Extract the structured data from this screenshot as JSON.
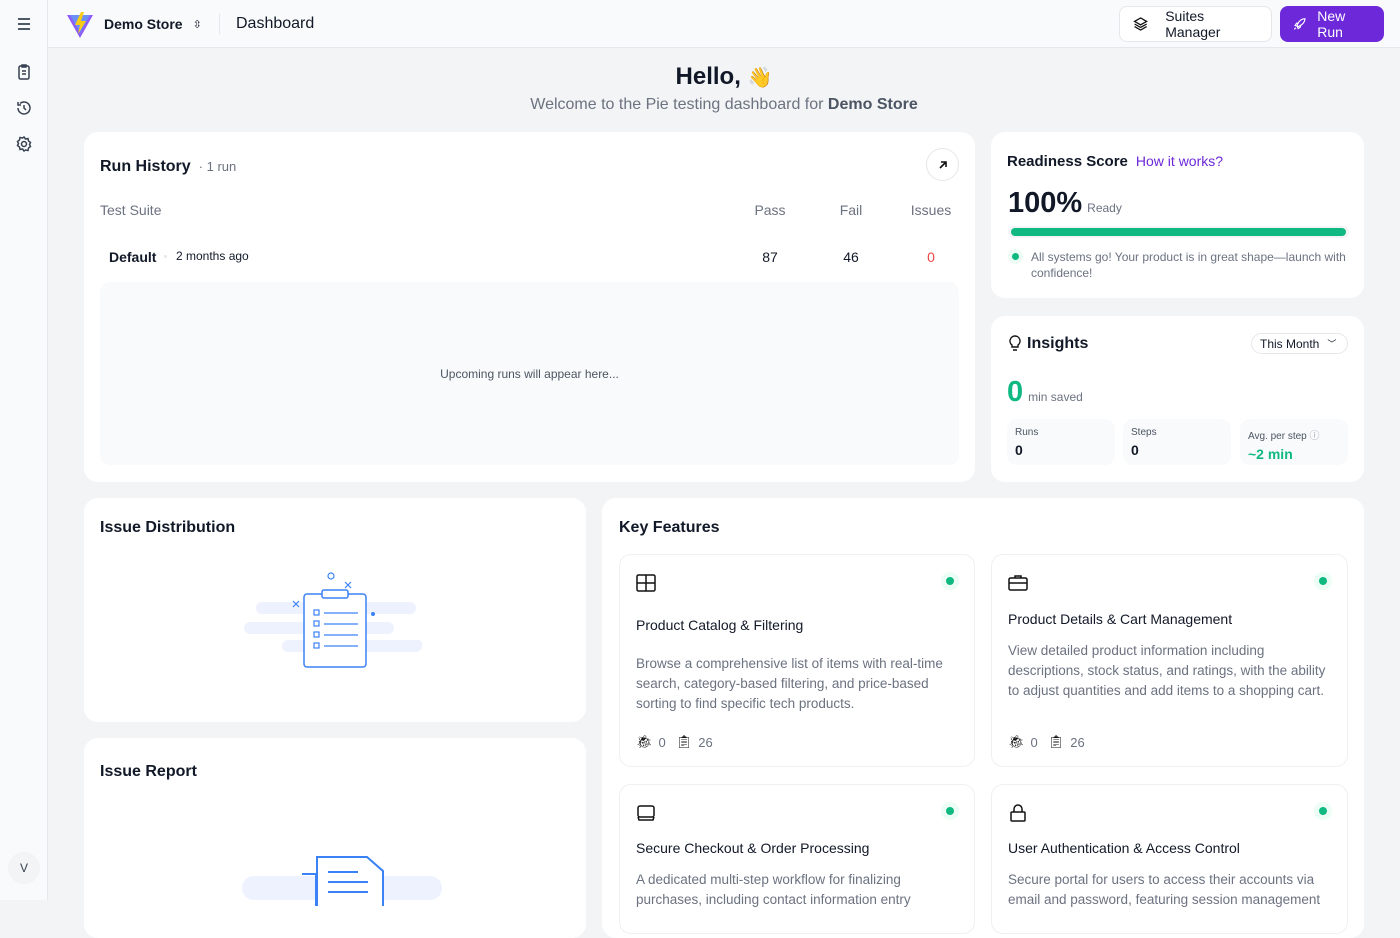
{
  "sidebar": {
    "avatar_letter": "V"
  },
  "header": {
    "store": "Demo Store",
    "page": "Dashboard",
    "suites_manager": "Suites Manager",
    "new_run": "New Run"
  },
  "greeting": {
    "title": "Hello,",
    "subtitle_prefix": "Welcome to the Pie testing dashboard for ",
    "store": "Demo Store"
  },
  "run_history": {
    "title": "Run History",
    "count": "· 1 run",
    "columns": [
      "Test Suite",
      "Pass",
      "Fail",
      "Issues"
    ],
    "rows": [
      {
        "suite": "Default",
        "time": "2 months ago",
        "pass": "87",
        "fail": "46",
        "issues": "0"
      }
    ],
    "empty": "Upcoming runs will appear here..."
  },
  "readiness": {
    "title": "Readiness Score",
    "link": "How it works?",
    "score": "100%",
    "score_value": 100,
    "status": "Ready",
    "message": "All systems go! Your product is in great shape—launch with confidence!",
    "color": "#10b981"
  },
  "insights": {
    "title": "Insights",
    "period": "This Month",
    "minutes": "0",
    "minutes_label": "min saved",
    "stats": [
      {
        "label": "Runs",
        "value": "0"
      },
      {
        "label": "Steps",
        "value": "0"
      },
      {
        "label": "Avg. per step",
        "value": "~2 min"
      }
    ]
  },
  "issue_distribution": {
    "title": "Issue Distribution"
  },
  "issue_report": {
    "title": "Issue Report"
  },
  "key_features": {
    "title": "Key Features",
    "items": [
      {
        "icon": "grid-icon",
        "title": "Product Catalog & Filtering",
        "desc": "Browse a comprehensive list of items with real-time search, category-based filtering, and price-based sorting to find specific tech products.",
        "bugs": "0",
        "tests": "26"
      },
      {
        "icon": "briefcase-icon",
        "title": "Product Details & Cart Management",
        "desc": "View detailed product information including descriptions, stock status, and ratings, with the ability to adjust quantities and add items to a shopping cart.",
        "bugs": "0",
        "tests": "26"
      },
      {
        "icon": "laptop-icon",
        "title": "Secure Checkout & Order Processing",
        "desc": "A dedicated multi-step workflow for finalizing purchases, including contact information entry"
      },
      {
        "icon": "lock-icon",
        "title": "User Authentication & Access Control",
        "desc": "Secure portal for users to access their accounts via email and password, featuring session management"
      }
    ]
  }
}
